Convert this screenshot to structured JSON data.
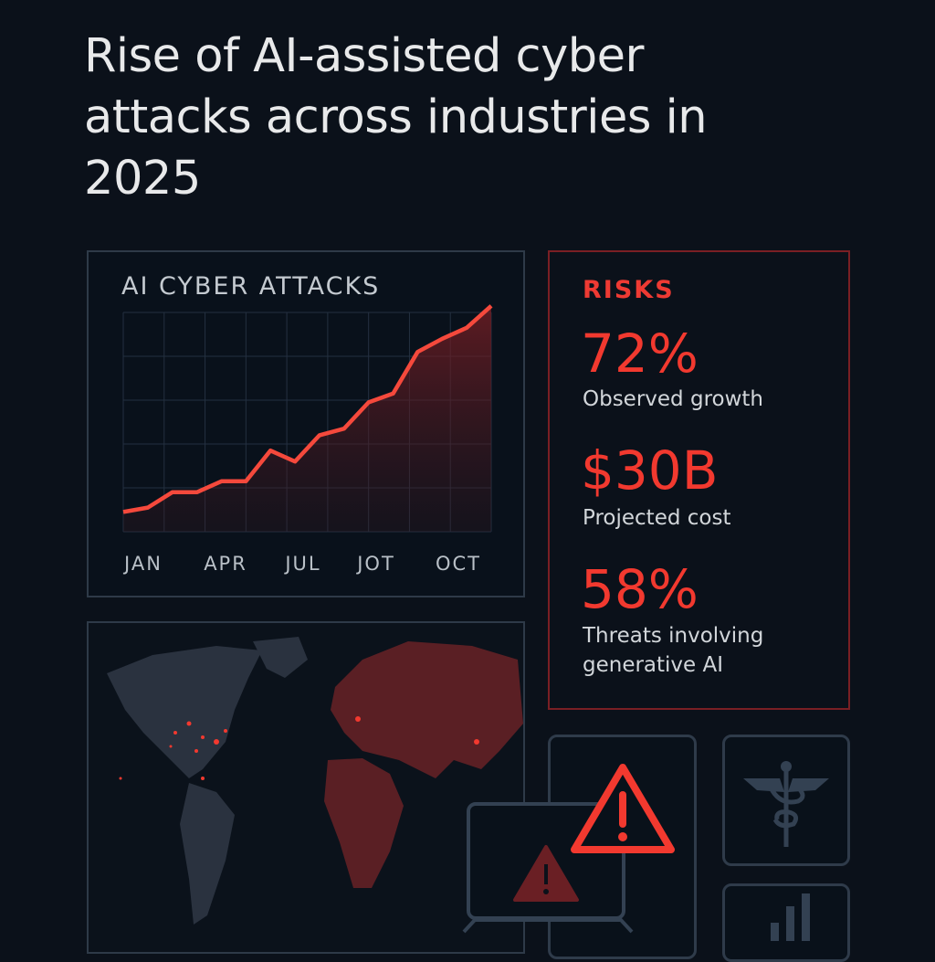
{
  "title": "Rise of AI-assisted cyber attacks across industries in 2025",
  "colors": {
    "accent": "#f2392f",
    "background": "#0b111a",
    "border": "#2e3a48",
    "map_land": "#5a1f24"
  },
  "chart_data": {
    "type": "area",
    "title": "AI CYBER ATTACKS",
    "xlabel": "",
    "ylabel": "",
    "x_tick_labels": [
      "JAN",
      "APR",
      "JUL",
      "JOT",
      "OCT"
    ],
    "values": [
      9,
      11,
      18,
      18,
      23,
      23,
      37,
      32,
      44,
      47,
      59,
      63,
      82,
      88,
      93,
      103
    ],
    "ylim": [
      0,
      105
    ],
    "grid": true,
    "line_color": "#f5493c"
  },
  "risks": {
    "heading": "RISKS",
    "stats": [
      {
        "value": "72%",
        "label": "Observed growth"
      },
      {
        "value": "$30B",
        "label": "Projected cost"
      },
      {
        "value": "58%",
        "label": "Threats involving generative AI"
      }
    ]
  },
  "icons": [
    "world-map-icon",
    "laptop-warning-icon",
    "warning-triangle-icon",
    "caduceus-icon",
    "bar-chart-icon"
  ]
}
